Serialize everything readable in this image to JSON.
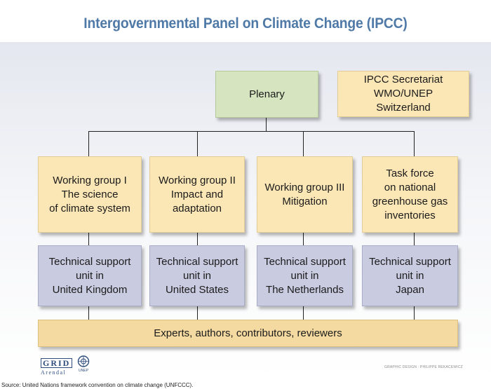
{
  "title": "Intergovernmental Panel on Climate Change (IPCC)",
  "plenary": {
    "label": "Plenary"
  },
  "secretariat": {
    "lines": [
      "IPCC Secretariat",
      "WMO/UNEP",
      "Switzerland"
    ]
  },
  "working_groups": [
    {
      "lines": [
        "Working group I",
        "The science",
        "of climate system"
      ]
    },
    {
      "lines": [
        "Working group II",
        "Impact and",
        "adaptation"
      ]
    },
    {
      "lines": [
        "Working group III",
        "Mitigation"
      ]
    },
    {
      "lines": [
        "Task force",
        "on national",
        "greenhouse gas",
        "inventories"
      ]
    }
  ],
  "support_units": [
    {
      "lines": [
        "Technical support",
        "unit in",
        "United Kingdom"
      ]
    },
    {
      "lines": [
        "Technical support",
        "unit in",
        "United States"
      ]
    },
    {
      "lines": [
        "Technical support",
        "unit in",
        "The Netherlands"
      ]
    },
    {
      "lines": [
        "Technical support",
        "unit in",
        "Japan"
      ]
    }
  ],
  "experts": {
    "label": "Experts, authors, contributors, reviewers"
  },
  "credit": "GRAPHIC DESIGN : PHILIPPE REKACEWICZ",
  "source": "Source: United Nations framework convention on climate change (UNFCCC).",
  "logos": {
    "grid_top": "GRID",
    "grid_bottom": "Arendal",
    "unep": "UNEP"
  },
  "colors": {
    "title": "#4f79a7",
    "plenary": "#d6e5bf",
    "group_box": "#fbe6b5",
    "support_box": "#c9cbe1",
    "experts_bar": "#f4daa0"
  }
}
